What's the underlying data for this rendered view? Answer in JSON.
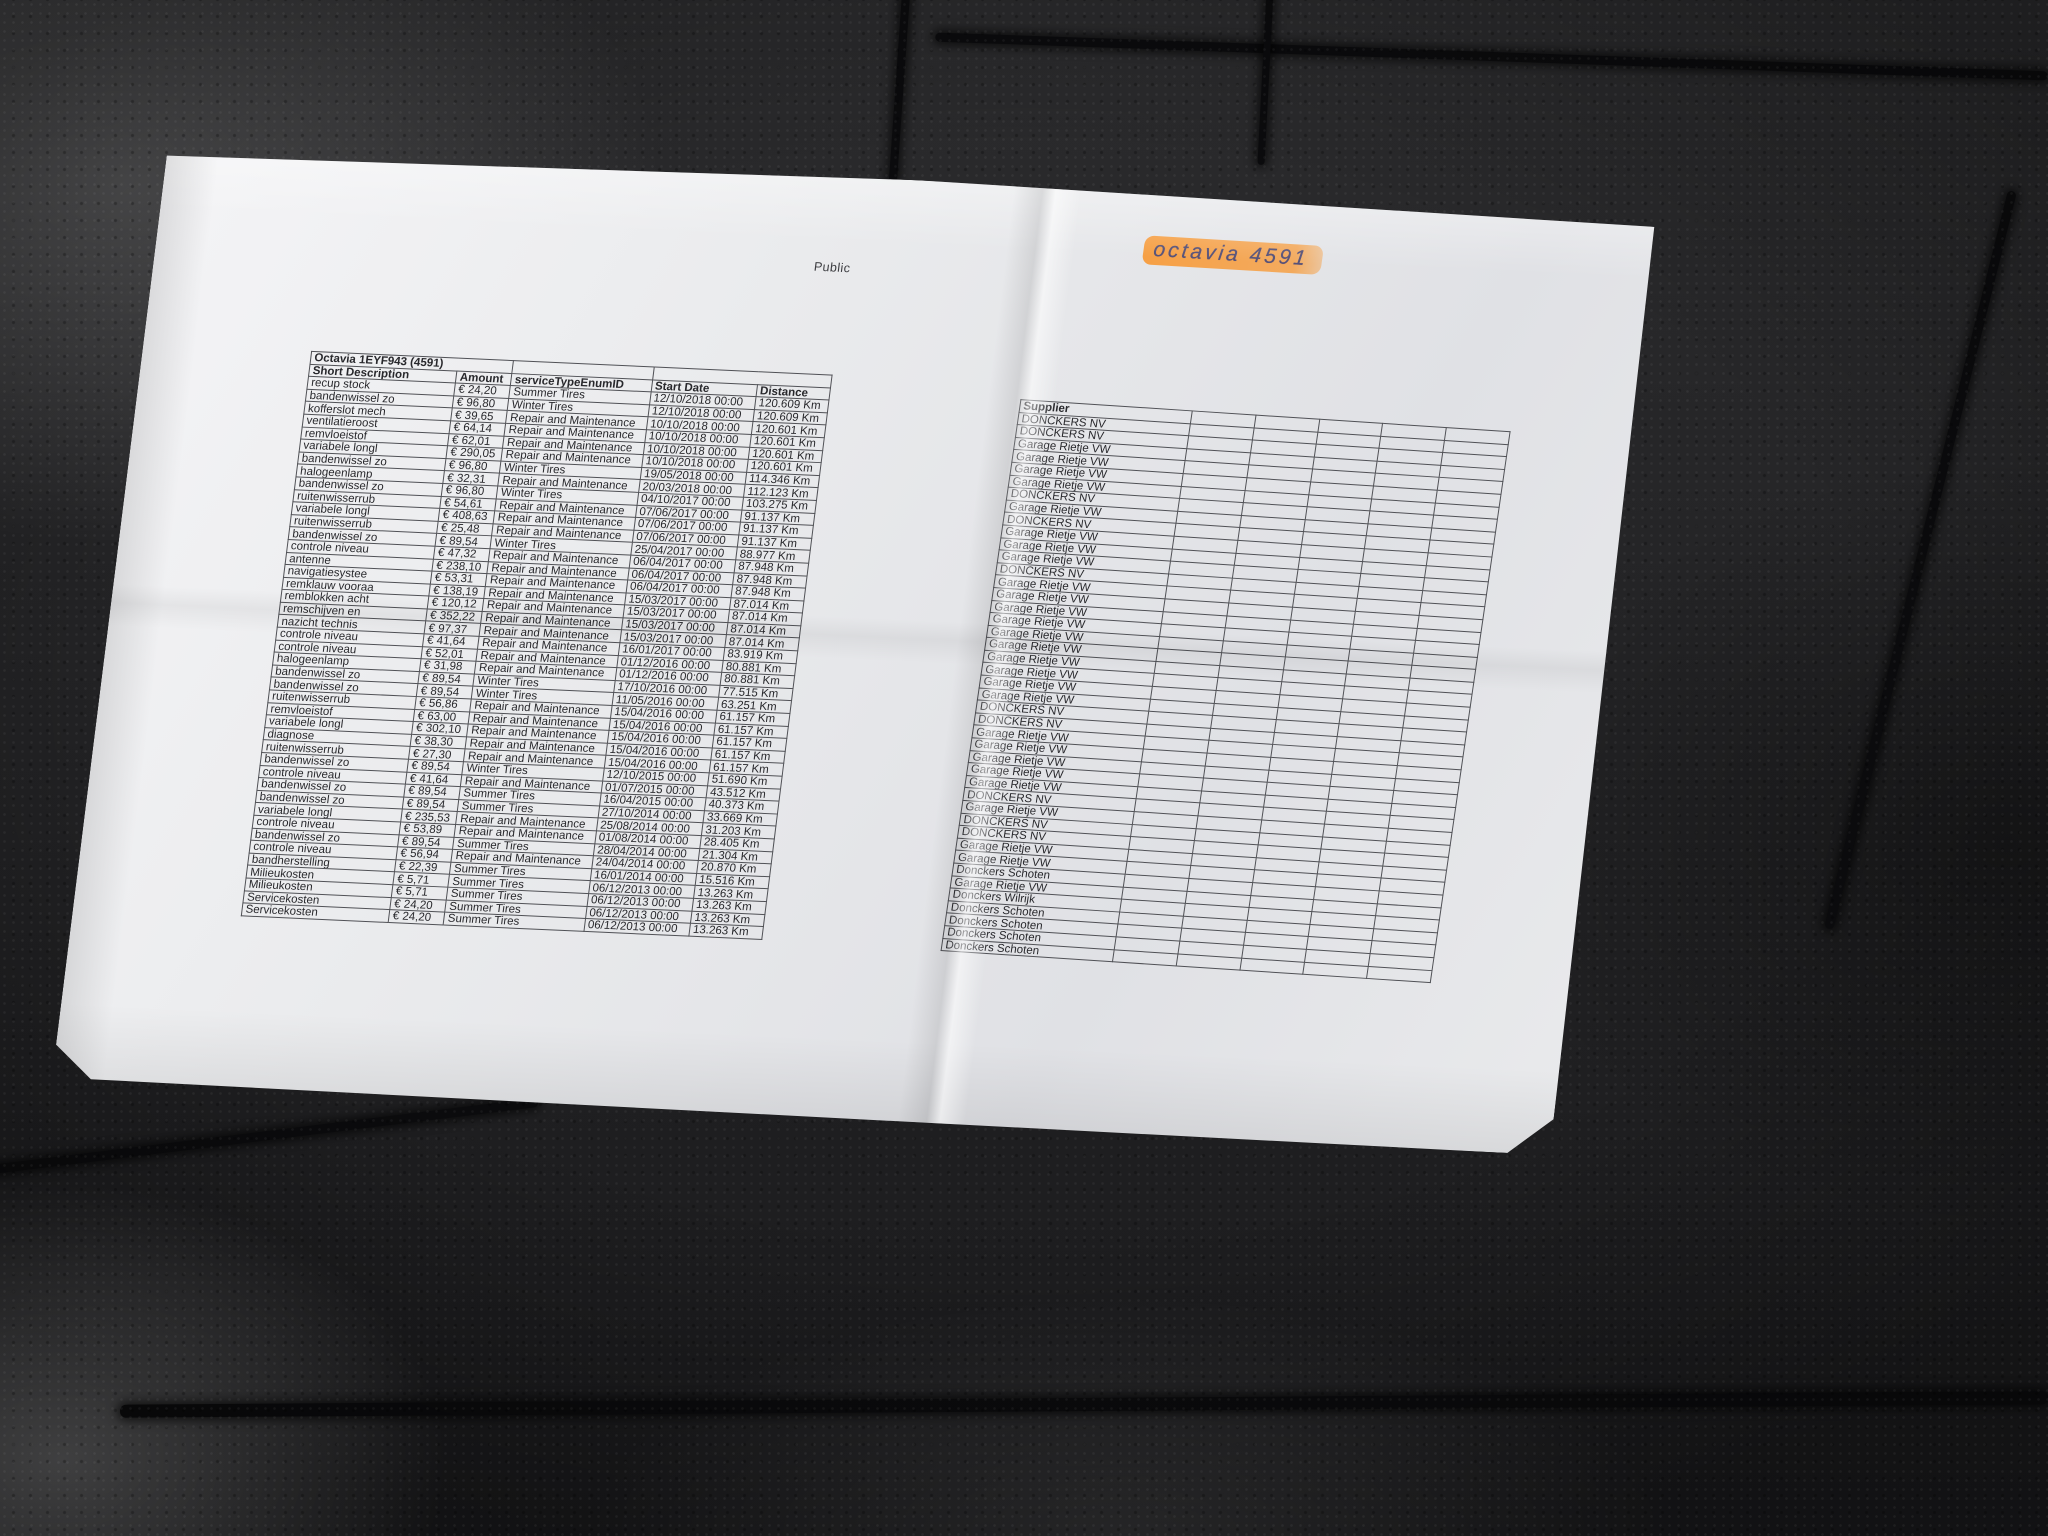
{
  "page": {
    "classification_label": "Public",
    "handwritten_note": "octavia 4591",
    "highlight_color": "#f79c3c"
  },
  "table": {
    "title": "Octavia 1EYF943 (4591)",
    "columns": [
      "Short Description",
      "Amount",
      "serviceTypeEnumID",
      "Start Date",
      "Distance",
      "Supplier"
    ],
    "rows": [
      [
        "recup stock",
        "€ 24,20",
        "Summer Tires",
        "12/10/2018 00:00",
        "120.609 Km",
        "DONCKERS NV"
      ],
      [
        "bandenwissel zo",
        "€ 96,80",
        "Winter Tires",
        "12/10/2018 00:00",
        "120.609 Km",
        "DONCKERS NV"
      ],
      [
        "kofferslot mech",
        "€ 39,65",
        "Repair and Maintenance",
        "10/10/2018 00:00",
        "120.601 Km",
        "Garage Rietje VW"
      ],
      [
        "ventilatieroost",
        "€ 64,14",
        "Repair and Maintenance",
        "10/10/2018 00:00",
        "120.601 Km",
        "Garage Rietje VW"
      ],
      [
        "remvloeistof",
        "€ 62,01",
        "Repair and Maintenance",
        "10/10/2018 00:00",
        "120.601 Km",
        "Garage Rietje VW"
      ],
      [
        "variabele longl",
        "€ 290,05",
        "Repair and Maintenance",
        "10/10/2018 00:00",
        "120.601 Km",
        "Garage Rietje VW"
      ],
      [
        "bandenwissel zo",
        "€ 96,80",
        "Winter Tires",
        "19/05/2018 00:00",
        "114.346 Km",
        "DONCKERS NV"
      ],
      [
        "halogeenlamp",
        "€ 32,31",
        "Repair and Maintenance",
        "20/03/2018 00:00",
        "112.123 Km",
        "Garage Rietje VW"
      ],
      [
        "bandenwissel zo",
        "€ 96,80",
        "Winter Tires",
        "04/10/2017 00:00",
        "103.275 Km",
        "DONCKERS NV"
      ],
      [
        "ruitenwisserrub",
        "€ 54,61",
        "Repair and Maintenance",
        "07/06/2017 00:00",
        "91.137 Km",
        "Garage Rietje VW"
      ],
      [
        "variabele longl",
        "€ 408,63",
        "Repair and Maintenance",
        "07/06/2017 00:00",
        "91.137 Km",
        "Garage Rietje VW"
      ],
      [
        "ruitenwisserrub",
        "€ 25,48",
        "Repair and Maintenance",
        "07/06/2017 00:00",
        "91.137 Km",
        "Garage Rietje VW"
      ],
      [
        "bandenwissel zo",
        "€ 89,54",
        "Winter Tires",
        "25/04/2017 00:00",
        "88.977 Km",
        "DONCKERS NV"
      ],
      [
        "controle niveau",
        "€ 47,32",
        "Repair and Maintenance",
        "06/04/2017 00:00",
        "87.948 Km",
        "Garage Rietje VW"
      ],
      [
        "antenne",
        "€ 238,10",
        "Repair and Maintenance",
        "06/04/2017 00:00",
        "87.948 Km",
        "Garage Rietje VW"
      ],
      [
        "navigatiesystee",
        "€ 53,31",
        "Repair and Maintenance",
        "06/04/2017 00:00",
        "87.948 Km",
        "Garage Rietje VW"
      ],
      [
        "remklauw vooraa",
        "€ 138,19",
        "Repair and Maintenance",
        "15/03/2017 00:00",
        "87.014 Km",
        "Garage Rietje VW"
      ],
      [
        "remblokken acht",
        "€ 120,12",
        "Repair and Maintenance",
        "15/03/2017 00:00",
        "87.014 Km",
        "Garage Rietje VW"
      ],
      [
        "remschijven en",
        "€ 352,22",
        "Repair and Maintenance",
        "15/03/2017 00:00",
        "87.014 Km",
        "Garage Rietje VW"
      ],
      [
        "nazicht technis",
        "€ 97,37",
        "Repair and Maintenance",
        "15/03/2017 00:00",
        "87.014 Km",
        "Garage Rietje VW"
      ],
      [
        "controle niveau",
        "€ 41,64",
        "Repair and Maintenance",
        "16/01/2017 00:00",
        "83.919 Km",
        "Garage Rietje VW"
      ],
      [
        "controle niveau",
        "€ 52,01",
        "Repair and Maintenance",
        "01/12/2016 00:00",
        "80.881 Km",
        "Garage Rietje VW"
      ],
      [
        "halogeenlamp",
        "€ 31,98",
        "Repair and Maintenance",
        "01/12/2016 00:00",
        "80.881 Km",
        "Garage Rietje VW"
      ],
      [
        "bandenwissel zo",
        "€ 89,54",
        "Winter Tires",
        "17/10/2016 00:00",
        "77.515 Km",
        "DONCKERS NV"
      ],
      [
        "bandenwissel zo",
        "€ 89,54",
        "Winter Tires",
        "11/05/2016 00:00",
        "63.251 Km",
        "DONCKERS NV"
      ],
      [
        "ruitenwisserrub",
        "€ 56,86",
        "Repair and Maintenance",
        "15/04/2016 00:00",
        "61.157 Km",
        "Garage Rietje VW"
      ],
      [
        "remvloeistof",
        "€ 63,00",
        "Repair and Maintenance",
        "15/04/2016 00:00",
        "61.157 Km",
        "Garage Rietje VW"
      ],
      [
        "variabele longl",
        "€ 302,10",
        "Repair and Maintenance",
        "15/04/2016 00:00",
        "61.157 Km",
        "Garage Rietje VW"
      ],
      [
        "diagnose",
        "€ 38,30",
        "Repair and Maintenance",
        "15/04/2016 00:00",
        "61.157 Km",
        "Garage Rietje VW"
      ],
      [
        "ruitenwisserrub",
        "€ 27,30",
        "Repair and Maintenance",
        "15/04/2016 00:00",
        "61.157 Km",
        "Garage Rietje VW"
      ],
      [
        "bandenwissel zo",
        "€ 89,54",
        "Winter Tires",
        "12/10/2015 00:00",
        "51.690 Km",
        "DONCKERS NV"
      ],
      [
        "controle niveau",
        "€ 41,64",
        "Repair and Maintenance",
        "01/07/2015 00:00",
        "43.512 Km",
        "Garage Rietje VW"
      ],
      [
        "bandenwissel zo",
        "€ 89,54",
        "Summer Tires",
        "16/04/2015 00:00",
        "40.373 Km",
        "DONCKERS NV"
      ],
      [
        "bandenwissel zo",
        "€ 89,54",
        "Summer Tires",
        "27/10/2014 00:00",
        "33.669 Km",
        "DONCKERS NV"
      ],
      [
        "variabele longl",
        "€ 235,53",
        "Repair and Maintenance",
        "25/08/2014 00:00",
        "31.203 Km",
        "Garage Rietje VW"
      ],
      [
        "controle niveau",
        "€ 53,89",
        "Repair and Maintenance",
        "01/08/2014 00:00",
        "28.405 Km",
        "Garage Rietje VW"
      ],
      [
        "bandenwissel zo",
        "€ 89,54",
        "Summer Tires",
        "28/04/2014 00:00",
        "21.304 Km",
        "Donckers Schoten"
      ],
      [
        "controle niveau",
        "€ 56,94",
        "Repair and Maintenance",
        "24/04/2014 00:00",
        "20.870 Km",
        "Garage Rietje VW"
      ],
      [
        "bandherstelling",
        "€ 22,39",
        "Summer Tires",
        "16/01/2014 00:00",
        "15.516 Km",
        "Donckers Wilrijk"
      ],
      [
        "Milieukosten",
        "€ 5,71",
        "Summer Tires",
        "06/12/2013 00:00",
        "13.263 Km",
        "Donckers Schoten"
      ],
      [
        "Milieukosten",
        "€ 5,71",
        "Summer Tires",
        "06/12/2013 00:00",
        "13.263 Km",
        "Donckers Schoten"
      ],
      [
        "Servicekosten",
        "€ 24,20",
        "Summer Tires",
        "06/12/2013 00:00",
        "13.263 Km",
        "Donckers Schoten"
      ],
      [
        "Servicekosten",
        "€ 24,20",
        "Summer Tires",
        "06/12/2013 00:00",
        "13.263 Km",
        "Donckers Schoten"
      ]
    ]
  }
}
